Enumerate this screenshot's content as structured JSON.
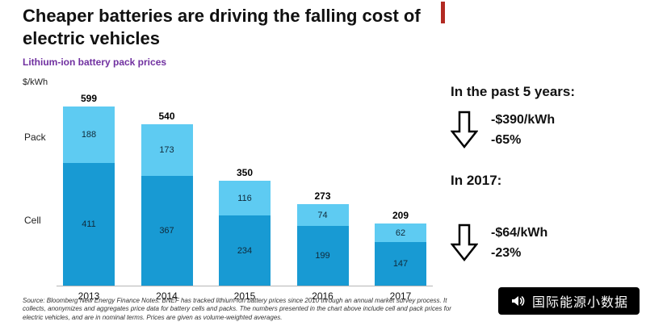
{
  "page": {
    "title": "Cheaper batteries are driving the falling cost of electric vehicles",
    "subtitle": "Lithium-ion battery pack prices",
    "ylabel": "$/kWh",
    "source": "Source: Bloomberg New Energy Finance Notes: BNEF has tracked lithium-ion battery prices since 2010 through an annual market survey process. It collects, anonymizes and aggregates price data for battery cells and packs. The numbers presented in the chart above include cell and pack prices for electric vehicles, and are in nominal terms. Prices are given as volume-weighted averages."
  },
  "chart_data": {
    "type": "bar",
    "stacked": true,
    "title": "Lithium-ion battery pack prices",
    "xlabel": "",
    "ylabel": "$/kWh",
    "categories": [
      "2013",
      "2014",
      "2015",
      "2016",
      "2017"
    ],
    "series": [
      {
        "name": "Cell",
        "color": "#189ad3",
        "values": [
          411,
          367,
          234,
          199,
          147
        ]
      },
      {
        "name": "Pack",
        "color": "#5ecbf2",
        "values": [
          188,
          173,
          116,
          74,
          62
        ]
      }
    ],
    "totals": [
      599,
      540,
      350,
      273,
      209
    ],
    "ylim": [
      0,
      620
    ],
    "grid": false,
    "legend_position": "left-side-labels"
  },
  "annotations": {
    "five_years": {
      "heading": "In the past 5 years:",
      "value": "-$390/kWh",
      "percent": "-65%"
    },
    "in_2017": {
      "heading": "In 2017:",
      "value": "-$64/kWh",
      "percent": "-23%"
    }
  },
  "badge": {
    "label": "国际能源小数据"
  },
  "colors": {
    "subtitle": "#7030a0",
    "cell": "#189ad3",
    "pack": "#5ecbf2",
    "marker_red": "#b22a22"
  }
}
